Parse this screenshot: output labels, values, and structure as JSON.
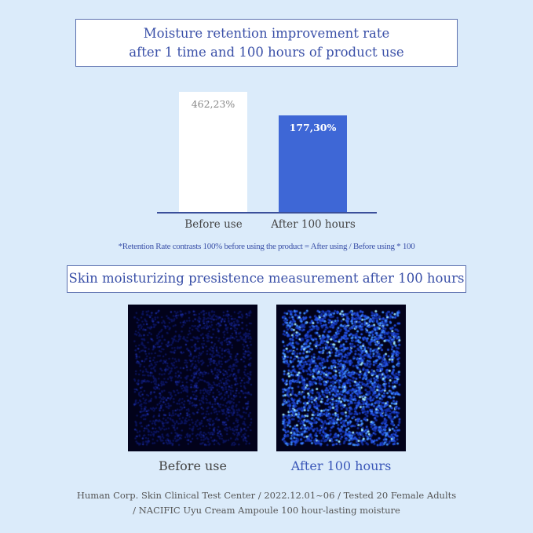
{
  "chart_data": {
    "type": "bar",
    "title": "Moisture retention improvement rate after 1 time and 100 hours of product use",
    "title_lines": [
      "Moisture retention improvement rate",
      "after 1 time and 100 hours of product use"
    ],
    "categories": [
      "Before use",
      "After 100 hours"
    ],
    "values": [
      462.23,
      177.3
    ],
    "value_labels": [
      "462,23%",
      "177,30%"
    ],
    "bar_colors": [
      "#ffffff",
      "#3e67d6"
    ],
    "note": "*Retention Rate contrasts 100% before using the product = After using / Before using * 100",
    "grid": false
  },
  "section2": {
    "title": "Skin moisturizing presistence measurement after 100 hours",
    "images": [
      {
        "caption": "Before use"
      },
      {
        "caption": "After 100 hours"
      }
    ]
  },
  "footer": {
    "line1": "Human Corp. Skin Clinical Test Center / 2022.12.01~06 / Tested 20 Female Adults",
    "line2": "/ NACIFIC Uyu Cream Ampoule 100 hour-lasting moisture"
  }
}
